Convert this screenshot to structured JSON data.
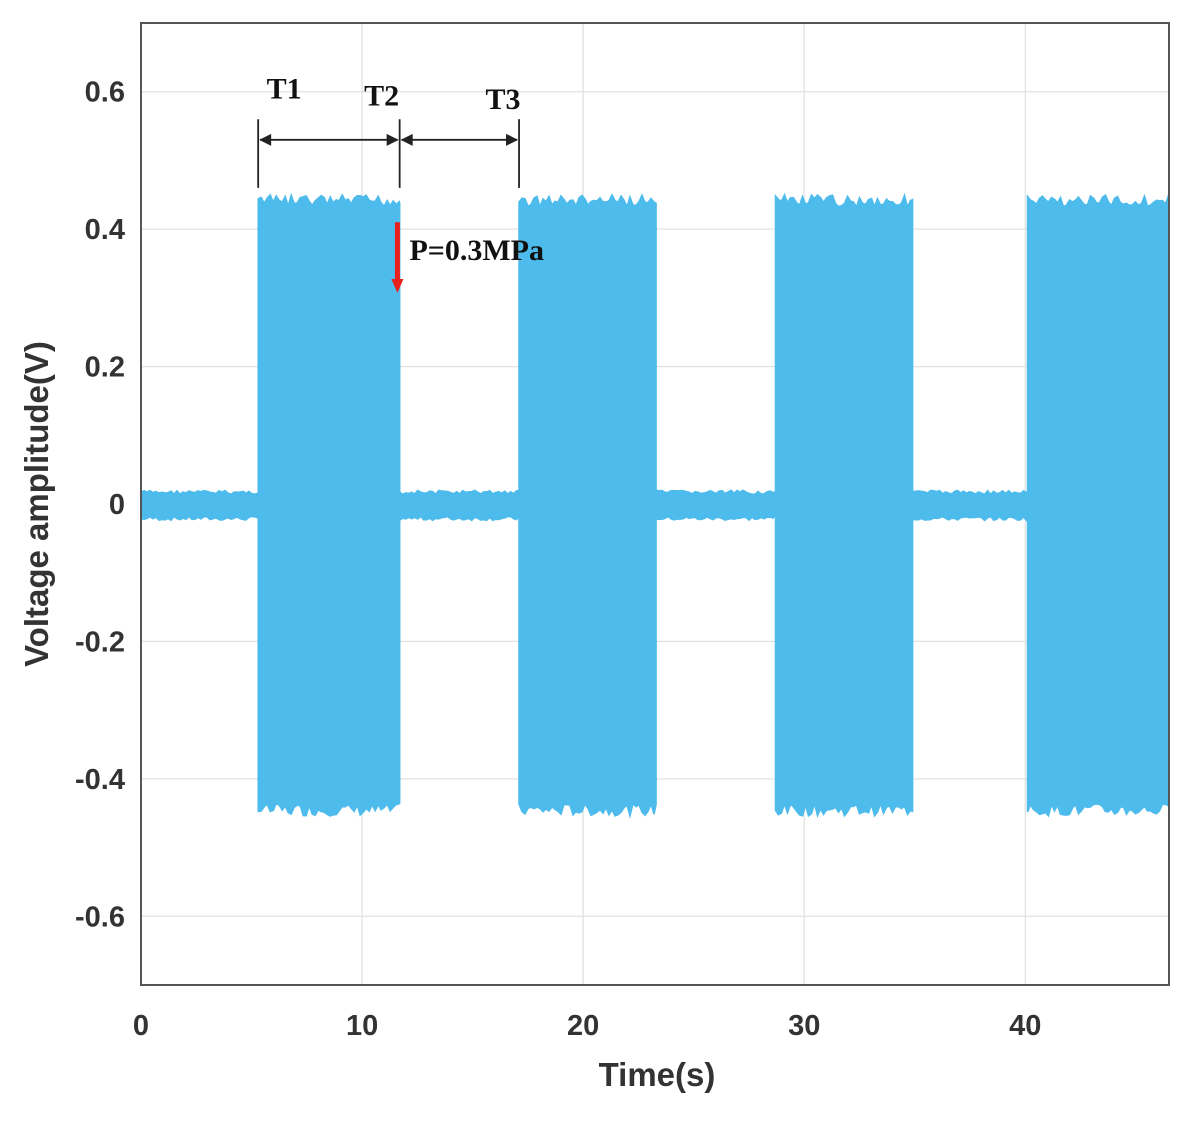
{
  "chart_data": {
    "type": "area",
    "title": "",
    "xlabel": "Time(s)",
    "ylabel": "Voltage amplitude(V)",
    "xlim": [
      0,
      46.5
    ],
    "ylim": [
      -0.7,
      0.7
    ],
    "xticks": [
      0,
      10,
      20,
      30,
      40
    ],
    "yticks": [
      0.6,
      0.4,
      0.2,
      0,
      -0.2,
      -0.4,
      -0.6
    ],
    "ytick_labels": [
      "0.6",
      "0.4",
      "0.2",
      "0",
      "-0.2",
      "-0.4",
      "-0.6"
    ],
    "grid": true,
    "color": "#4DBBEB",
    "series": [
      {
        "envelope": [
          {
            "t_start": 0.0,
            "t_end": 5.3,
            "amplitude": 0.02
          },
          {
            "t_start": 5.3,
            "t_end": 11.7,
            "amplitude": 0.45
          },
          {
            "t_start": 11.7,
            "t_end": 17.1,
            "amplitude": 0.02
          },
          {
            "t_start": 17.1,
            "t_end": 23.3,
            "amplitude": 0.45
          },
          {
            "t_start": 23.3,
            "t_end": 28.7,
            "amplitude": 0.02
          },
          {
            "t_start": 28.7,
            "t_end": 34.9,
            "amplitude": 0.45
          },
          {
            "t_start": 34.9,
            "t_end": 40.1,
            "amplitude": 0.02
          },
          {
            "t_start": 40.1,
            "t_end": 46.5,
            "amplitude": 0.45
          }
        ]
      }
    ],
    "annotations": {
      "intervals": [
        {
          "label": "T1",
          "t_start": 5.3,
          "t_end": 11.7
        },
        {
          "label": "T2",
          "t_at": 11.7
        },
        {
          "label": "T3",
          "t_start": 11.7,
          "t_end": 17.1
        }
      ],
      "pressure": {
        "label": "P=0.3MPa",
        "t": 11.6,
        "v_from": 0.41,
        "v_to": 0.31,
        "color": "#E8211E"
      }
    }
  }
}
